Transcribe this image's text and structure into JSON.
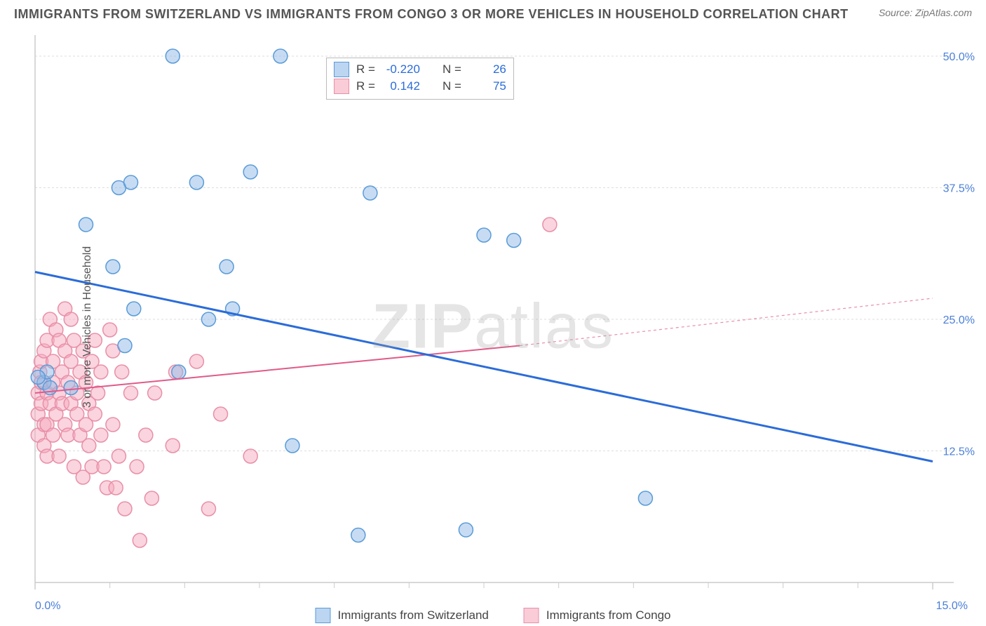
{
  "header": {
    "title": "IMMIGRANTS FROM SWITZERLAND VS IMMIGRANTS FROM CONGO 3 OR MORE VEHICLES IN HOUSEHOLD CORRELATION CHART",
    "source": "Source: ZipAtlas.com"
  },
  "watermark": {
    "part1": "ZIP",
    "part2": "atlas"
  },
  "chart": {
    "type": "scatter",
    "ylabel": "3 or more Vehicles in Household",
    "xlim": [
      0,
      15
    ],
    "ylim": [
      0,
      52
    ],
    "x_ticks": [
      0,
      15
    ],
    "x_tick_labels": [
      "0.0%",
      "15.0%"
    ],
    "x_minor_ticks": [
      1.25,
      2.5,
      3.75,
      5,
      6.25,
      7.5,
      8.75,
      10,
      11.25,
      12.5,
      13.75
    ],
    "y_ticks": [
      12.5,
      25.0,
      37.5,
      50.0
    ],
    "y_tick_labels": [
      "12.5%",
      "25.0%",
      "37.5%",
      "50.0%"
    ],
    "marker_radius": 10,
    "colors": {
      "blue_fill": "#8fb9e8",
      "blue_stroke": "#5a9bd8",
      "blue_line": "#2b6cd8",
      "pink_fill": "#f5aabe",
      "pink_stroke": "#e88fa8",
      "pink_line": "#e05a8a",
      "grid": "#dddddd",
      "axis": "#cccccc",
      "tick_text": "#4a7fd8",
      "text": "#555555",
      "background": "#ffffff"
    },
    "series_blue": {
      "label": "Immigrants from Switzerland",
      "r": "-0.220",
      "n": "26",
      "trend": {
        "x1": 0,
        "y1": 29.5,
        "x2": 15,
        "y2": 11.5
      },
      "points": [
        [
          0.15,
          19
        ],
        [
          0.2,
          20
        ],
        [
          0.25,
          18.5
        ],
        [
          1.4,
          37.5
        ],
        [
          1.6,
          38
        ],
        [
          2.3,
          50
        ],
        [
          2.7,
          38
        ],
        [
          1.5,
          22.5
        ],
        [
          2.9,
          25
        ],
        [
          3.2,
          30
        ],
        [
          3.3,
          26
        ],
        [
          3.6,
          39
        ],
        [
          2.4,
          20
        ],
        [
          1.65,
          26
        ],
        [
          0.85,
          34
        ],
        [
          4.1,
          50
        ],
        [
          4.3,
          13
        ],
        [
          5.4,
          4.5
        ],
        [
          5.6,
          37
        ],
        [
          7.2,
          5
        ],
        [
          7.5,
          33
        ],
        [
          8.0,
          32.5
        ],
        [
          10.2,
          8
        ],
        [
          1.3,
          30
        ],
        [
          0.6,
          18.5
        ],
        [
          0.05,
          19.5
        ]
      ]
    },
    "series_pink": {
      "label": "Immigrants from Congo",
      "r": "0.142",
      "n": "75",
      "trend_solid": {
        "x1": 0,
        "y1": 18,
        "x2": 8.1,
        "y2": 22.5
      },
      "trend_dash": {
        "x1": 8.1,
        "y1": 22.5,
        "x2": 15,
        "y2": 27
      },
      "points": [
        [
          0.05,
          14
        ],
        [
          0.05,
          16
        ],
        [
          0.05,
          18
        ],
        [
          0.08,
          20
        ],
        [
          0.1,
          17
        ],
        [
          0.1,
          19
        ],
        [
          0.1,
          21
        ],
        [
          0.15,
          13
        ],
        [
          0.15,
          15
        ],
        [
          0.15,
          22
        ],
        [
          0.2,
          23
        ],
        [
          0.2,
          18
        ],
        [
          0.2,
          15
        ],
        [
          0.2,
          12
        ],
        [
          0.25,
          25
        ],
        [
          0.25,
          17
        ],
        [
          0.3,
          19
        ],
        [
          0.3,
          14
        ],
        [
          0.3,
          21
        ],
        [
          0.35,
          16
        ],
        [
          0.35,
          24
        ],
        [
          0.4,
          18
        ],
        [
          0.4,
          12
        ],
        [
          0.4,
          23
        ],
        [
          0.45,
          20
        ],
        [
          0.45,
          17
        ],
        [
          0.5,
          26
        ],
        [
          0.5,
          22
        ],
        [
          0.5,
          15
        ],
        [
          0.55,
          19
        ],
        [
          0.55,
          14
        ],
        [
          0.6,
          25
        ],
        [
          0.6,
          21
        ],
        [
          0.6,
          17
        ],
        [
          0.65,
          11
        ],
        [
          0.65,
          23
        ],
        [
          0.7,
          18
        ],
        [
          0.7,
          16
        ],
        [
          0.75,
          20
        ],
        [
          0.75,
          14
        ],
        [
          0.8,
          22
        ],
        [
          0.8,
          10
        ],
        [
          0.85,
          19
        ],
        [
          0.85,
          15
        ],
        [
          0.9,
          17
        ],
        [
          0.9,
          13
        ],
        [
          0.95,
          21
        ],
        [
          0.95,
          11
        ],
        [
          1.0,
          23
        ],
        [
          1.0,
          16
        ],
        [
          1.05,
          18
        ],
        [
          1.1,
          14
        ],
        [
          1.1,
          20
        ],
        [
          1.15,
          11
        ],
        [
          1.2,
          9
        ],
        [
          1.25,
          24
        ],
        [
          1.3,
          22
        ],
        [
          1.3,
          15
        ],
        [
          1.35,
          9
        ],
        [
          1.4,
          12
        ],
        [
          1.45,
          20
        ],
        [
          1.5,
          7
        ],
        [
          1.6,
          18
        ],
        [
          1.7,
          11
        ],
        [
          1.75,
          4
        ],
        [
          1.85,
          14
        ],
        [
          1.95,
          8
        ],
        [
          2.0,
          18
        ],
        [
          2.3,
          13
        ],
        [
          2.35,
          20
        ],
        [
          2.7,
          21
        ],
        [
          2.9,
          7
        ],
        [
          3.1,
          16
        ],
        [
          3.6,
          12
        ],
        [
          8.6,
          34
        ]
      ]
    }
  },
  "legend_labels": {
    "r": "R =",
    "n": "N ="
  },
  "bottom_legend": {
    "items": [
      "Immigrants from Switzerland",
      "Immigrants from Congo"
    ]
  }
}
